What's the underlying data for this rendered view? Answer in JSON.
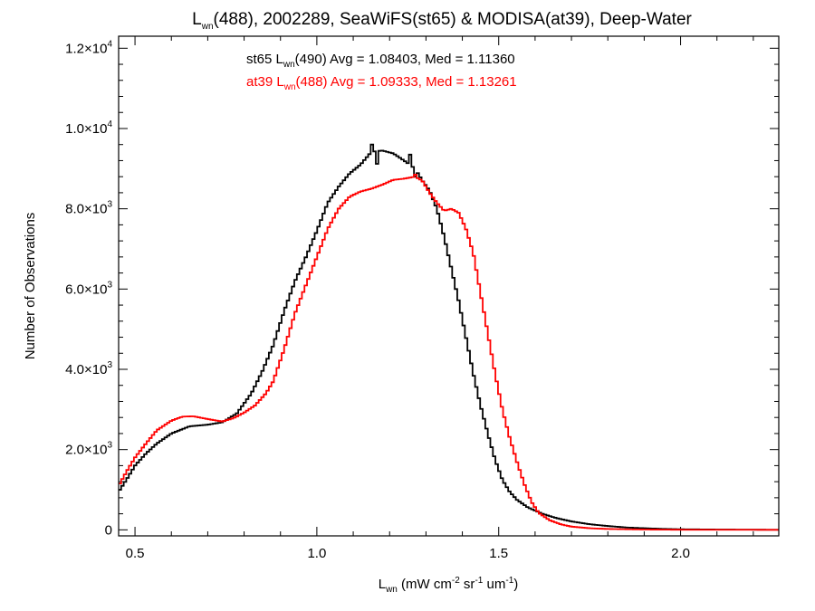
{
  "chart_data": {
    "type": "line",
    "title": {
      "prefix": "L",
      "sub": "wn",
      "rest": "(488), 2002289, SeaWiFS(st65) & MODISA(at39), Deep-Water"
    },
    "xlabel": {
      "prefix": "L",
      "sub": "wn",
      "unit_a": " (mW cm",
      "sup_a": "-2",
      "unit_b": " sr",
      "sup_b": "-1",
      "unit_c": " um",
      "sup_c": "-1",
      "unit_d": ")"
    },
    "ylabel": "Number of Observations",
    "xlim": [
      0.455,
      2.27
    ],
    "ylim": [
      -150,
      12300
    ],
    "x_ticks": [
      {
        "value": 0.5,
        "label": "0.5"
      },
      {
        "value": 1.0,
        "label": "1.0"
      },
      {
        "value": 1.5,
        "label": "1.5"
      },
      {
        "value": 2.0,
        "label": "2.0"
      }
    ],
    "y_ticks": [
      {
        "value": 0,
        "mantissa": "0",
        "times": "",
        "base": "",
        "exp": ""
      },
      {
        "value": 2000,
        "mantissa": "2.0",
        "times": "×",
        "base": "10",
        "exp": "3"
      },
      {
        "value": 4000,
        "mantissa": "4.0",
        "times": "×",
        "base": "10",
        "exp": "3"
      },
      {
        "value": 6000,
        "mantissa": "6.0",
        "times": "×",
        "base": "10",
        "exp": "3"
      },
      {
        "value": 8000,
        "mantissa": "8.0",
        "times": "×",
        "base": "10",
        "exp": "3"
      },
      {
        "value": 10000,
        "mantissa": "1.0",
        "times": "×",
        "base": "10",
        "exp": "4"
      },
      {
        "value": 12000,
        "mantissa": "1.2",
        "times": "×",
        "base": "10",
        "exp": "4"
      }
    ],
    "annotations": [
      {
        "color": "#000000",
        "name_pre": "st65 L",
        "name_sub": "wn",
        "name_post": "(490)",
        "stats": " Avg = 1.08403, Med = 1.11360"
      },
      {
        "color": "#ff0000",
        "name_pre": "at39 L",
        "name_sub": "wn",
        "name_post": "(488)",
        "stats": " Avg = 1.09333, Med = 1.13261"
      }
    ],
    "step": "histogram",
    "series": [
      {
        "name": "st65",
        "color": "#000000",
        "points": [
          [
            0.455,
            950
          ],
          [
            0.48,
            1300
          ],
          [
            0.5,
            1600
          ],
          [
            0.53,
            1900
          ],
          [
            0.56,
            2150
          ],
          [
            0.6,
            2400
          ],
          [
            0.65,
            2580
          ],
          [
            0.7,
            2620
          ],
          [
            0.74,
            2680
          ],
          [
            0.78,
            2900
          ],
          [
            0.82,
            3400
          ],
          [
            0.85,
            3950
          ],
          [
            0.88,
            4600
          ],
          [
            0.91,
            5450
          ],
          [
            0.94,
            6200
          ],
          [
            0.97,
            6800
          ],
          [
            1.0,
            7450
          ],
          [
            1.03,
            8150
          ],
          [
            1.06,
            8550
          ],
          [
            1.09,
            8880
          ],
          [
            1.12,
            9100
          ],
          [
            1.15,
            9420
          ],
          [
            1.18,
            9450
          ],
          [
            1.21,
            9380
          ],
          [
            1.24,
            9200
          ],
          [
            1.27,
            9000
          ],
          [
            1.29,
            8700
          ],
          [
            1.31,
            8450
          ],
          [
            1.33,
            8000
          ],
          [
            1.35,
            7300
          ],
          [
            1.37,
            6500
          ],
          [
            1.39,
            5700
          ],
          [
            1.41,
            4800
          ],
          [
            1.43,
            3900
          ],
          [
            1.45,
            3100
          ],
          [
            1.47,
            2400
          ],
          [
            1.49,
            1750
          ],
          [
            1.51,
            1250
          ],
          [
            1.53,
            950
          ],
          [
            1.55,
            750
          ],
          [
            1.58,
            560
          ],
          [
            1.62,
            400
          ],
          [
            1.66,
            290
          ],
          [
            1.7,
            210
          ],
          [
            1.75,
            140
          ],
          [
            1.8,
            95
          ],
          [
            1.85,
            60
          ],
          [
            1.9,
            40
          ],
          [
            1.95,
            25
          ],
          [
            2.0,
            15
          ],
          [
            2.1,
            8
          ],
          [
            2.2,
            4
          ],
          [
            2.27,
            2
          ]
        ],
        "spikes": [
          [
            1.151,
            9600
          ],
          [
            1.162,
            9120
          ],
          [
            1.255,
            9350
          ],
          [
            1.271,
            8800
          ]
        ]
      },
      {
        "name": "at39",
        "color": "#ff0000",
        "points": [
          [
            0.455,
            1100
          ],
          [
            0.48,
            1500
          ],
          [
            0.5,
            1800
          ],
          [
            0.53,
            2150
          ],
          [
            0.56,
            2480
          ],
          [
            0.6,
            2720
          ],
          [
            0.63,
            2820
          ],
          [
            0.66,
            2830
          ],
          [
            0.7,
            2760
          ],
          [
            0.74,
            2700
          ],
          [
            0.77,
            2780
          ],
          [
            0.8,
            2920
          ],
          [
            0.83,
            3100
          ],
          [
            0.86,
            3400
          ],
          [
            0.88,
            3700
          ],
          [
            0.91,
            4500
          ],
          [
            0.94,
            5400
          ],
          [
            0.97,
            6100
          ],
          [
            1.0,
            6800
          ],
          [
            1.03,
            7500
          ],
          [
            1.06,
            8000
          ],
          [
            1.09,
            8300
          ],
          [
            1.12,
            8430
          ],
          [
            1.15,
            8500
          ],
          [
            1.18,
            8600
          ],
          [
            1.21,
            8720
          ],
          [
            1.24,
            8750
          ],
          [
            1.27,
            8800
          ],
          [
            1.29,
            8700
          ],
          [
            1.31,
            8400
          ],
          [
            1.33,
            8150
          ],
          [
            1.35,
            7950
          ],
          [
            1.37,
            8000
          ],
          [
            1.39,
            7900
          ],
          [
            1.41,
            7500
          ],
          [
            1.43,
            6900
          ],
          [
            1.45,
            5900
          ],
          [
            1.47,
            4900
          ],
          [
            1.49,
            3900
          ],
          [
            1.51,
            3000
          ],
          [
            1.53,
            2300
          ],
          [
            1.55,
            1700
          ],
          [
            1.57,
            1150
          ],
          [
            1.59,
            700
          ],
          [
            1.61,
            420
          ],
          [
            1.64,
            240
          ],
          [
            1.67,
            140
          ],
          [
            1.7,
            80
          ],
          [
            1.75,
            40
          ],
          [
            1.8,
            22
          ],
          [
            1.9,
            8
          ],
          [
            2.0,
            3
          ],
          [
            2.27,
            1
          ]
        ],
        "spikes": [
          [
            1.271,
            8850
          ]
        ]
      }
    ]
  }
}
